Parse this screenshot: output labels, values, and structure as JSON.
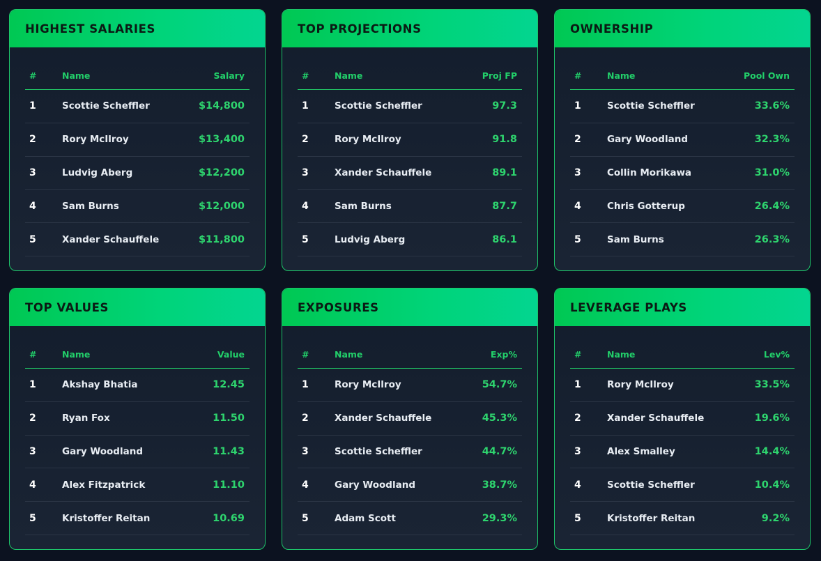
{
  "cards": [
    {
      "title": "HIGHEST SALARIES",
      "columns": {
        "rank": "#",
        "name": "Name",
        "value": "Salary"
      },
      "rows": [
        {
          "rank": "1",
          "name": "Scottie Scheffler",
          "value": "$14,800"
        },
        {
          "rank": "2",
          "name": "Rory McIlroy",
          "value": "$13,400"
        },
        {
          "rank": "3",
          "name": "Ludvig Aberg",
          "value": "$12,200"
        },
        {
          "rank": "4",
          "name": "Sam Burns",
          "value": "$12,000"
        },
        {
          "rank": "5",
          "name": "Xander Schauffele",
          "value": "$11,800"
        }
      ]
    },
    {
      "title": "TOP PROJECTIONS",
      "columns": {
        "rank": "#",
        "name": "Name",
        "value": "Proj FP"
      },
      "rows": [
        {
          "rank": "1",
          "name": "Scottie Scheffler",
          "value": "97.3"
        },
        {
          "rank": "2",
          "name": "Rory McIlroy",
          "value": "91.8"
        },
        {
          "rank": "3",
          "name": "Xander Schauffele",
          "value": "89.1"
        },
        {
          "rank": "4",
          "name": "Sam Burns",
          "value": "87.7"
        },
        {
          "rank": "5",
          "name": "Ludvig Aberg",
          "value": "86.1"
        }
      ]
    },
    {
      "title": "OWNERSHIP",
      "columns": {
        "rank": "#",
        "name": "Name",
        "value": "Pool Own"
      },
      "rows": [
        {
          "rank": "1",
          "name": "Scottie Scheffler",
          "value": "33.6%"
        },
        {
          "rank": "2",
          "name": "Gary Woodland",
          "value": "32.3%"
        },
        {
          "rank": "3",
          "name": "Collin Morikawa",
          "value": "31.0%"
        },
        {
          "rank": "4",
          "name": "Chris Gotterup",
          "value": "26.4%"
        },
        {
          "rank": "5",
          "name": "Sam Burns",
          "value": "26.3%"
        }
      ]
    },
    {
      "title": "TOP VALUES",
      "columns": {
        "rank": "#",
        "name": "Name",
        "value": "Value"
      },
      "rows": [
        {
          "rank": "1",
          "name": "Akshay Bhatia",
          "value": "12.45"
        },
        {
          "rank": "2",
          "name": "Ryan Fox",
          "value": "11.50"
        },
        {
          "rank": "3",
          "name": "Gary Woodland",
          "value": "11.43"
        },
        {
          "rank": "4",
          "name": "Alex Fitzpatrick",
          "value": "11.10"
        },
        {
          "rank": "5",
          "name": "Kristoffer Reitan",
          "value": "10.69"
        }
      ]
    },
    {
      "title": "EXPOSURES",
      "columns": {
        "rank": "#",
        "name": "Name",
        "value": "Exp%"
      },
      "rows": [
        {
          "rank": "1",
          "name": "Rory McIlroy",
          "value": "54.7%"
        },
        {
          "rank": "2",
          "name": "Xander Schauffele",
          "value": "45.3%"
        },
        {
          "rank": "3",
          "name": "Scottie Scheffler",
          "value": "44.7%"
        },
        {
          "rank": "4",
          "name": "Gary Woodland",
          "value": "38.7%"
        },
        {
          "rank": "5",
          "name": "Adam Scott",
          "value": "29.3%"
        }
      ]
    },
    {
      "title": "LEVERAGE PLAYS",
      "columns": {
        "rank": "#",
        "name": "Name",
        "value": "Lev%"
      },
      "rows": [
        {
          "rank": "1",
          "name": "Rory McIlroy",
          "value": "33.5%"
        },
        {
          "rank": "2",
          "name": "Xander Schauffele",
          "value": "19.6%"
        },
        {
          "rank": "3",
          "name": "Alex Smalley",
          "value": "14.4%"
        },
        {
          "rank": "4",
          "name": "Scottie Scheffler",
          "value": "10.4%"
        },
        {
          "rank": "5",
          "name": "Kristoffer Reitan",
          "value": "9.2%"
        }
      ]
    }
  ],
  "colors": {
    "background": "#0c1220",
    "accent": "#00d47a",
    "value_text": "#2ed46e",
    "header_text": "#0b1a14"
  }
}
